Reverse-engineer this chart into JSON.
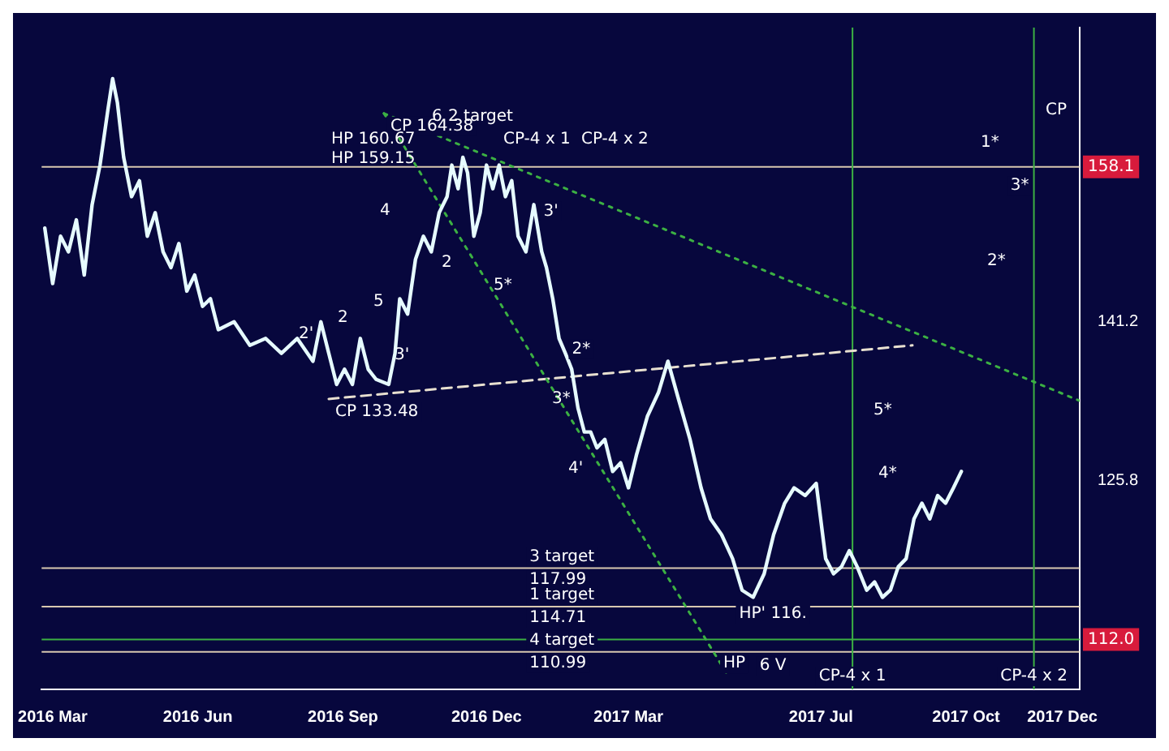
{
  "chart_data": {
    "type": "line",
    "log": "y",
    "grid": false,
    "legend": false,
    "marker": "none",
    "xlim": [
      "2016-02-23",
      "2017-12-12"
    ],
    "xticks": [
      {
        "value": "2016-03-01",
        "label": "2016 Mar"
      },
      {
        "value": "2016-06-01",
        "label": "2016 Jun"
      },
      {
        "value": "2016-09-01",
        "label": "2016 Sep"
      },
      {
        "value": "2016-12-01",
        "label": "2016 Dec"
      },
      {
        "value": "2017-03-01",
        "label": "2017 Mar"
      },
      {
        "value": "2017-07-01",
        "label": "2017 Jul"
      },
      {
        "value": "2017-10-01",
        "label": "2017 Oct"
      },
      {
        "value": "2017-12-01",
        "label": "2017 Dec"
      }
    ],
    "ylim": [
      108,
      175
    ],
    "yticks": [
      141.2,
      125.8
    ],
    "series": [
      {
        "color": "#e6fbff",
        "line_style": "solid",
        "x": [
          "2016-02-25",
          "2016-03-01",
          "2016-03-06",
          "2016-03-11",
          "2016-03-16",
          "2016-03-21",
          "2016-03-26",
          "2016-03-31",
          "2016-04-05",
          "2016-04-08",
          "2016-04-11",
          "2016-04-15",
          "2016-04-20",
          "2016-04-25",
          "2016-04-30",
          "2016-05-05",
          "2016-05-10",
          "2016-05-15",
          "2016-05-20",
          "2016-05-25",
          "2016-05-30",
          "2016-06-04",
          "2016-06-09",
          "2016-06-14",
          "2016-06-24",
          "2016-07-04",
          "2016-07-14",
          "2016-07-24",
          "2016-08-03",
          "2016-08-13",
          "2016-08-18",
          "2016-08-23",
          "2016-08-28",
          "2016-09-02",
          "2016-09-07",
          "2016-09-12",
          "2016-09-17",
          "2016-09-22",
          "2016-09-30",
          "2016-10-04",
          "2016-10-07",
          "2016-10-12",
          "2016-10-17",
          "2016-10-22",
          "2016-10-27",
          "2016-11-01",
          "2016-11-06",
          "2016-11-09",
          "2016-11-13",
          "2016-11-16",
          "2016-11-19",
          "2016-11-23",
          "2016-11-27",
          "2016-12-01",
          "2016-12-05",
          "2016-12-09",
          "2016-12-13",
          "2016-12-17",
          "2016-12-21",
          "2016-12-26",
          "2016-12-31",
          "2017-01-05",
          "2017-01-08",
          "2017-01-12",
          "2017-01-16",
          "2017-01-20",
          "2017-01-24",
          "2017-01-28",
          "2017-02-01",
          "2017-02-05",
          "2017-02-09",
          "2017-02-14",
          "2017-02-19",
          "2017-02-24",
          "2017-03-01",
          "2017-03-06",
          "2017-03-13",
          "2017-03-20",
          "2017-03-26",
          "2017-04-02",
          "2017-04-09",
          "2017-04-16",
          "2017-04-22",
          "2017-04-29",
          "2017-05-06",
          "2017-05-12",
          "2017-05-19",
          "2017-05-26",
          "2017-06-01",
          "2017-06-08",
          "2017-06-14",
          "2017-06-21",
          "2017-06-28",
          "2017-07-04",
          "2017-07-09",
          "2017-07-14",
          "2017-07-19",
          "2017-07-24",
          "2017-07-30",
          "2017-08-04",
          "2017-08-09",
          "2017-08-14",
          "2017-08-19",
          "2017-08-24",
          "2017-08-29",
          "2017-09-03",
          "2017-09-08",
          "2017-09-13",
          "2017-09-18",
          "2017-09-23",
          "2017-09-28"
        ],
        "values": [
          151.2,
          145.2,
          150.3,
          148.6,
          152.1,
          146.1,
          153.8,
          158.3,
          164.8,
          168.6,
          165.7,
          159.2,
          154.7,
          156.5,
          150.3,
          152.9,
          148.6,
          146.9,
          149.5,
          144.4,
          146.1,
          142.8,
          143.6,
          140.4,
          141.2,
          138.8,
          139.5,
          138.0,
          139.5,
          137.2,
          141.2,
          138.0,
          134.9,
          136.4,
          134.9,
          139.5,
          136.4,
          135.4,
          134.9,
          138.0,
          143.6,
          142.0,
          147.8,
          150.3,
          148.6,
          152.9,
          154.7,
          158.3,
          155.6,
          159.2,
          157.4,
          150.3,
          152.9,
          158.3,
          155.6,
          158.3,
          154.7,
          156.5,
          150.3,
          148.6,
          153.8,
          148.6,
          146.9,
          143.6,
          139.5,
          138.0,
          136.4,
          132.6,
          130.3,
          130.3,
          128.8,
          129.6,
          126.6,
          127.4,
          125.1,
          128.1,
          131.8,
          134.1,
          137.2,
          133.3,
          129.6,
          125.1,
          122.3,
          120.9,
          118.8,
          116.1,
          115.5,
          117.5,
          120.9,
          123.7,
          125.1,
          124.4,
          125.5,
          118.8,
          117.5,
          118.1,
          119.5,
          118.1,
          116.1,
          116.8,
          115.5,
          116.1,
          118.1,
          118.8,
          122.3,
          123.7,
          122.3,
          124.4,
          123.7,
          125.1,
          126.6
        ]
      },
      {
        "color": "#3cb043",
        "line_style": "dotted",
        "x": [
          "2016-09-27",
          "2017-12-12"
        ],
        "values": [
          164.38,
          133.3
        ]
      },
      {
        "color": "#3cb043",
        "line_style": "dotted",
        "x": [
          "2016-09-27",
          "2017-05-03"
        ],
        "values": [
          164.38,
          109.1
        ]
      },
      {
        "color": "#e8e0d0",
        "line_style": "dashed",
        "x": [
          "2016-08-23",
          "2017-08-28"
        ],
        "values": [
          133.48,
          138.8
        ]
      }
    ],
    "ref_lines": [
      {
        "axis": "y",
        "value": 158.1,
        "label": "158.1",
        "color": "#d8c8b0"
      },
      {
        "axis": "y",
        "value": 112.0,
        "label": "112.0",
        "color": "#3cb043"
      },
      {
        "axis": "y",
        "value": 117.99,
        "label": "3 target\n117.99",
        "color": "#d8c8b0"
      },
      {
        "axis": "y",
        "value": 114.71,
        "label": "1 target\n114.71",
        "color": "#d8c8b0"
      },
      {
        "axis": "y",
        "value": 110.99,
        "label": "4 target\n110.99",
        "color": "#d8c8b0"
      },
      {
        "axis": "x",
        "value": "2017-07-21",
        "label": "CP-4 x 1",
        "color": "#3cb043"
      },
      {
        "axis": "x",
        "value": "2017-11-13",
        "label": "CP-4 x 2",
        "color": "#3cb043"
      }
    ],
    "annotations": [
      {
        "text": "CP 164.38",
        "x": "2016-09-27",
        "y": 164.38
      },
      {
        "text": "CP 133.48",
        "x": "2016-08-23",
        "y": 133.48
      },
      "6",
      "2 target",
      "HP 160.67",
      "HP 159.15",
      "CP-4 x 1",
      "CP-4 x 2",
      "1*",
      "2*",
      "5*",
      "4*",
      "CP",
      "4",
      "2",
      "5",
      "2",
      "5*",
      "3'",
      "2'",
      "3*",
      "4'",
      {
        "text": "3*",
        "x": "2017-10-25",
        "y": 157.4
      },
      {
        "text": "HP' 116.",
        "x": "2017-05-06",
        "y": 115.2
      },
      {
        "text": "HP",
        "x": "2017-04-26",
        "y": 111.1
      },
      {
        "text": "6 V",
        "x": "2017-05-19",
        "y": 110.9
      },
      {
        "text": "3'",
        "x": "2017-01-02",
        "y": 154.5
      },
      {
        "text": "2*",
        "x": "2017-01-20",
        "y": 139.7
      }
    ]
  }
}
